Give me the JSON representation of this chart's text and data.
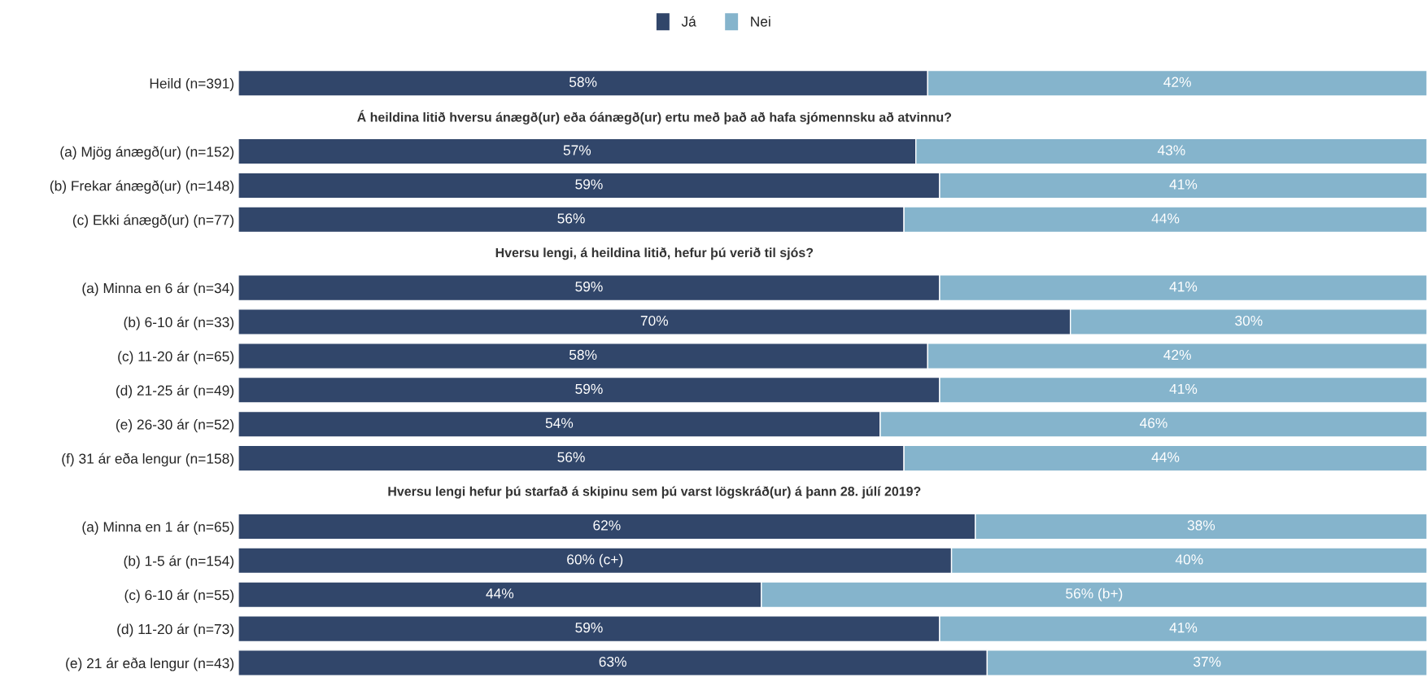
{
  "chart_data": {
    "type": "bar",
    "orientation": "horizontal",
    "stacked": true,
    "legend": "top",
    "grid": false,
    "tick_labels": "y",
    "xlim": [
      0,
      100
    ],
    "categories": [
      "Heild (n=391)",
      null,
      "(a) Mjög ánægð(ur) (n=152)",
      "(b) Frekar ánægð(ur) (n=148)",
      "(c) Ekki ánægð(ur) (n=77)",
      null,
      "(a) Minna en 6 ár (n=34)",
      "(b) 6-10 ár (n=33)",
      "(c) 11-20 ár (n=65)",
      "(d) 21-25 ár (n=49)",
      "(e) 26-30 ár (n=52)",
      "(f) 31 ár eða lengur (n=158)",
      null,
      "(a) Minna en 1 ár (n=65)",
      "(b) 1-5 ár (n=154)",
      "(c) 6-10 ár (n=55)",
      "(d) 11-20 ár (n=73)",
      "(e) 21 ár eða lengur (n=43)"
    ],
    "series": [
      {
        "name": "Já",
        "color": "#31466a",
        "values": [
          58,
          null,
          57,
          59,
          56,
          null,
          59,
          70,
          58,
          59,
          54,
          56,
          null,
          62,
          60,
          44,
          59,
          63
        ],
        "value_labels": [
          "58%",
          null,
          "57%",
          "59%",
          "56%",
          null,
          "59%",
          "70%",
          "58%",
          "59%",
          "54%",
          "56%",
          null,
          "62%",
          "60% (c+)",
          "44%",
          "59%",
          "63%"
        ]
      },
      {
        "name": "Nei",
        "color": "#85b4cc",
        "values": [
          42,
          null,
          43,
          41,
          44,
          null,
          41,
          30,
          42,
          41,
          46,
          44,
          null,
          38,
          40,
          56,
          41,
          37
        ],
        "value_labels": [
          "42%",
          null,
          "43%",
          "41%",
          "44%",
          null,
          "41%",
          "30%",
          "42%",
          "41%",
          "46%",
          "44%",
          null,
          "38%",
          "40%",
          "56% (b+)",
          "41%",
          "37%"
        ]
      }
    ],
    "annotations": [
      "Á heildina litið hversu ánægð(ur) eða óánægð(ur) ertu með það að hafa sjómennsku að atvinnu?",
      "Hversu lengi, á heildina litið, hefur þú verið til sjós?",
      "Hversu lengi hefur þú starfað á skipinu sem þú varst lögskráð(ur) á þann 28. júlí 2019?"
    ]
  }
}
